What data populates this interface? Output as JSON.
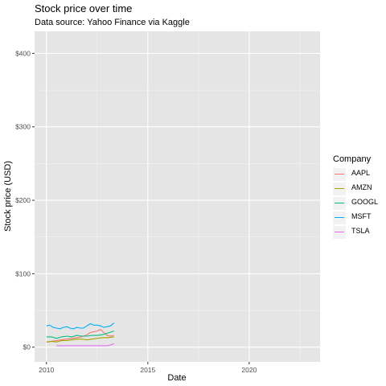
{
  "chart_data": {
    "type": "line",
    "title": "Stock price over time",
    "subtitle": "Data source: Yahoo Finance via Kaggle",
    "xlabel": "Date",
    "ylabel": "Stock price (USD)",
    "xlim": [
      "2009-06-01",
      "2023-07-01"
    ],
    "ylim": [
      -20,
      430
    ],
    "x_ticks": [
      {
        "value": "2010-01-01",
        "label": "2010"
      },
      {
        "value": "2015-01-01",
        "label": "2015"
      },
      {
        "value": "2020-01-01",
        "label": "2020"
      }
    ],
    "y_ticks": [
      {
        "value": 0,
        "label": "$0"
      },
      {
        "value": 100,
        "label": "$100"
      },
      {
        "value": 200,
        "label": "$200"
      },
      {
        "value": 300,
        "label": "$300"
      },
      {
        "value": 400,
        "label": "$400"
      }
    ],
    "grid": true,
    "background": "#e5e5e5",
    "legend": {
      "title": "Company",
      "position": "right"
    },
    "series": [
      {
        "name": "AAPL",
        "color": "#F8766D",
        "points": [
          [
            "2010-01-01",
            7
          ],
          [
            "2010-04-01",
            8
          ],
          [
            "2010-07-01",
            9
          ],
          [
            "2010-10-01",
            10
          ],
          [
            "2011-01-01",
            11
          ],
          [
            "2011-04-01",
            12
          ],
          [
            "2011-07-01",
            13
          ],
          [
            "2011-10-01",
            14
          ],
          [
            "2012-01-01",
            17
          ],
          [
            "2012-03-01",
            20
          ],
          [
            "2012-05-01",
            21
          ],
          [
            "2012-07-01",
            22
          ],
          [
            "2012-09-01",
            24
          ],
          [
            "2012-11-01",
            20
          ],
          [
            "2013-01-01",
            16
          ],
          [
            "2013-03-01",
            15
          ],
          [
            "2013-05-01",
            16
          ]
        ]
      },
      {
        "name": "AMZN",
        "color": "#A3A500",
        "points": [
          [
            "2010-01-01",
            7
          ],
          [
            "2010-04-01",
            8
          ],
          [
            "2010-07-01",
            7
          ],
          [
            "2010-10-01",
            9
          ],
          [
            "2011-01-01",
            9
          ],
          [
            "2011-04-01",
            10
          ],
          [
            "2011-07-01",
            11
          ],
          [
            "2011-10-01",
            11
          ],
          [
            "2012-01-01",
            10
          ],
          [
            "2012-04-01",
            11
          ],
          [
            "2012-07-01",
            12
          ],
          [
            "2012-10-01",
            13
          ],
          [
            "2013-01-01",
            13
          ],
          [
            "2013-05-01",
            14
          ]
        ]
      },
      {
        "name": "GOOGL",
        "color": "#00BF7D",
        "points": [
          [
            "2010-01-01",
            14
          ],
          [
            "2010-04-01",
            14
          ],
          [
            "2010-07-01",
            12
          ],
          [
            "2010-10-01",
            14
          ],
          [
            "2011-01-01",
            15
          ],
          [
            "2011-04-01",
            14
          ],
          [
            "2011-07-01",
            16
          ],
          [
            "2011-10-01",
            15
          ],
          [
            "2012-01-01",
            15
          ],
          [
            "2012-04-01",
            16
          ],
          [
            "2012-07-01",
            16
          ],
          [
            "2012-10-01",
            17
          ],
          [
            "2013-01-01",
            19
          ],
          [
            "2013-05-01",
            22
          ]
        ]
      },
      {
        "name": "MSFT",
        "color": "#00B0F6",
        "points": [
          [
            "2010-01-01",
            29
          ],
          [
            "2010-03-01",
            30
          ],
          [
            "2010-05-01",
            27
          ],
          [
            "2010-07-01",
            26
          ],
          [
            "2010-09-01",
            25
          ],
          [
            "2010-11-01",
            27
          ],
          [
            "2011-01-01",
            28
          ],
          [
            "2011-03-01",
            26
          ],
          [
            "2011-05-01",
            25
          ],
          [
            "2011-07-01",
            27
          ],
          [
            "2011-09-01",
            26
          ],
          [
            "2011-11-01",
            26
          ],
          [
            "2012-01-01",
            29
          ],
          [
            "2012-03-01",
            32
          ],
          [
            "2012-05-01",
            30
          ],
          [
            "2012-07-01",
            30
          ],
          [
            "2012-09-01",
            29
          ],
          [
            "2012-11-01",
            27
          ],
          [
            "2013-01-01",
            28
          ],
          [
            "2013-03-01",
            29
          ],
          [
            "2013-05-01",
            33
          ]
        ]
      },
      {
        "name": "TSLA",
        "color": "#E76BF3",
        "points": [
          [
            "2010-07-01",
            2
          ],
          [
            "2011-01-01",
            2
          ],
          [
            "2011-07-01",
            2
          ],
          [
            "2012-01-01",
            2
          ],
          [
            "2012-07-01",
            2
          ],
          [
            "2013-01-01",
            2
          ],
          [
            "2013-03-01",
            3
          ],
          [
            "2013-05-01",
            5
          ]
        ]
      }
    ]
  }
}
